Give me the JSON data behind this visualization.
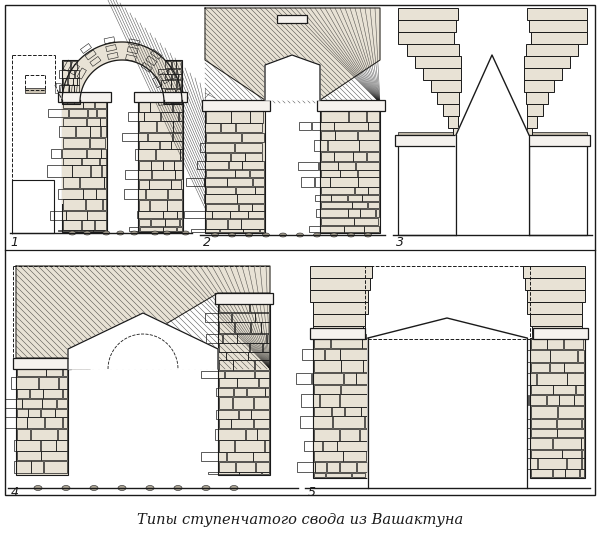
{
  "title": "Типы ступенчатого свода из Вашактуна",
  "title_fontsize": 10.5,
  "title_style": "italic",
  "bg_color": "#ffffff",
  "fig_width": 6.0,
  "fig_height": 5.42,
  "labels": [
    "1",
    "2",
    "3",
    "4",
    "5"
  ],
  "label_fontsize": 9,
  "lc": "#1a1a1a",
  "stone_bg": "#e8e2d5",
  "stone_dark": "#c8c0b0",
  "white": "#ffffff",
  "hatch_bg": "#d5cfc0"
}
